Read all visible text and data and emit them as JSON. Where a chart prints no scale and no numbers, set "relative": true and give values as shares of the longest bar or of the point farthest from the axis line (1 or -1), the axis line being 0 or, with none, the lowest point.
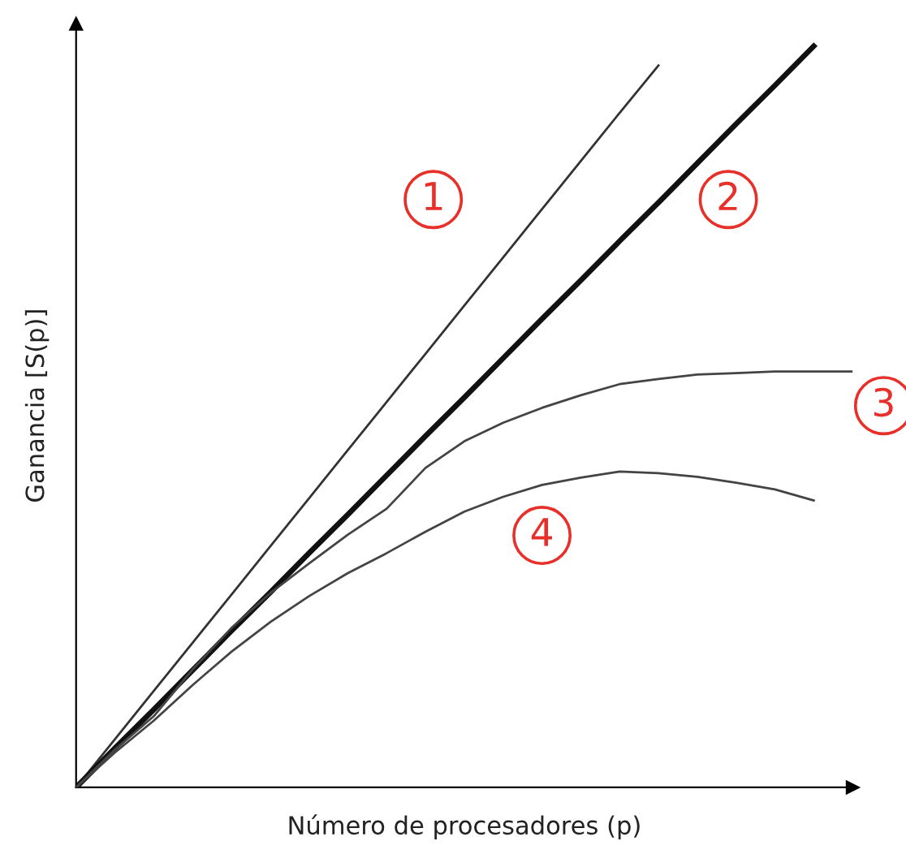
{
  "chart_data": {
    "type": "line",
    "relative": true,
    "xlabel": "Número de procesadores (p)",
    "ylabel": "Ganancia [S(p)]",
    "categories": [
      null,
      null,
      null,
      null,
      null,
      null,
      null,
      null,
      null,
      null,
      null,
      null,
      null,
      null,
      null,
      null,
      null,
      null,
      null,
      null,
      null
    ],
    "series": [
      {
        "color": "#333333",
        "values": [
          0,
          0.065,
          0.13,
          0.195,
          0.26,
          0.325,
          0.39,
          0.455,
          0.52,
          0.585,
          0.65,
          0.715,
          0.78,
          0.845,
          0.91,
          0.974,
          null,
          null,
          null,
          null,
          null
        ]
      },
      {
        "color": "#111111",
        "values": [
          0,
          0.053,
          0.105,
          0.158,
          0.211,
          0.263,
          0.316,
          0.368,
          0.421,
          0.474,
          0.526,
          0.579,
          0.632,
          0.684,
          0.737,
          0.789,
          0.842,
          0.895,
          0.947,
          1.0,
          null
        ]
      },
      {
        "color": "#444444",
        "values": [
          0,
          0.051,
          0.096,
          0.159,
          0.215,
          0.262,
          0.302,
          0.341,
          0.376,
          0.431,
          0.467,
          0.492,
          0.512,
          0.529,
          0.544,
          0.551,
          0.557,
          0.559,
          0.561,
          0.561,
          0.561
        ]
      },
      {
        "color": "#444444",
        "values": [
          0,
          0.047,
          0.09,
          0.138,
          0.183,
          0.223,
          0.258,
          0.289,
          0.316,
          0.345,
          0.372,
          0.392,
          0.408,
          0.418,
          0.426,
          0.424,
          0.419,
          0.411,
          0.402,
          0.387,
          null
        ]
      }
    ],
    "annotations": [
      "1",
      "2",
      "3",
      "4"
    ],
    "grid": false,
    "tick_labels": false
  }
}
